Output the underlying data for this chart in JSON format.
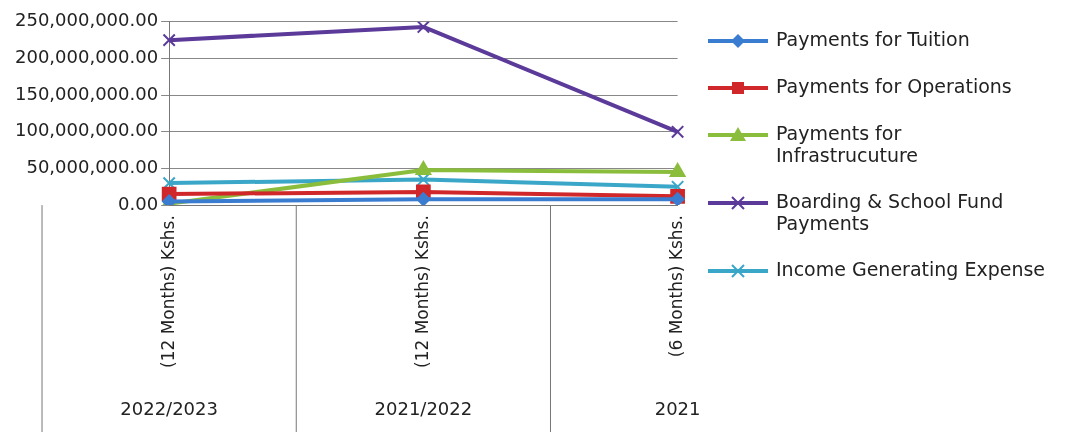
{
  "chart_data": {
    "type": "line",
    "categories": [
      "(12 Months) Kshs.",
      "(12 Months) Kshs.",
      "(6 Months) Kshs."
    ],
    "annotations": [
      "2022/2023",
      "2021/2022",
      "2021"
    ],
    "series": [
      {
        "name": "Payments for Tuition",
        "color": "#3a7dd0",
        "marker": "diamond",
        "values": [
          5000000,
          8000000,
          8000000
        ]
      },
      {
        "name": "Payments for Operations",
        "color": "#d0282a",
        "marker": "square",
        "values": [
          15000000,
          18000000,
          12000000
        ]
      },
      {
        "name": "Payments for Infrastrucuture",
        "color": "#8bbd3c",
        "marker": "triangle",
        "values": [
          2000000,
          48000000,
          45000000
        ]
      },
      {
        "name": "Boarding & School Fund Payments",
        "color": "#5b3a9a",
        "marker": "cross",
        "values": [
          225000000,
          243000000,
          100000000
        ]
      },
      {
        "name": "Income Generating Expense",
        "color": "#3aa6c8",
        "marker": "cross",
        "values": [
          30000000,
          35000000,
          25000000
        ]
      }
    ],
    "ylim": [
      0,
      250000000
    ],
    "yticks": [
      {
        "value": 0,
        "label": "0.00"
      },
      {
        "value": 50000000,
        "label": "50,000,000.00"
      },
      {
        "value": 100000000,
        "label": "100,000,000.00"
      },
      {
        "value": 150000000,
        "label": "150,000,000.00"
      },
      {
        "value": 200000000,
        "label": "200,000,000.00"
      },
      {
        "value": 250000000,
        "label": "250,000,000.00"
      }
    ],
    "grid": "y",
    "legend": "right"
  }
}
